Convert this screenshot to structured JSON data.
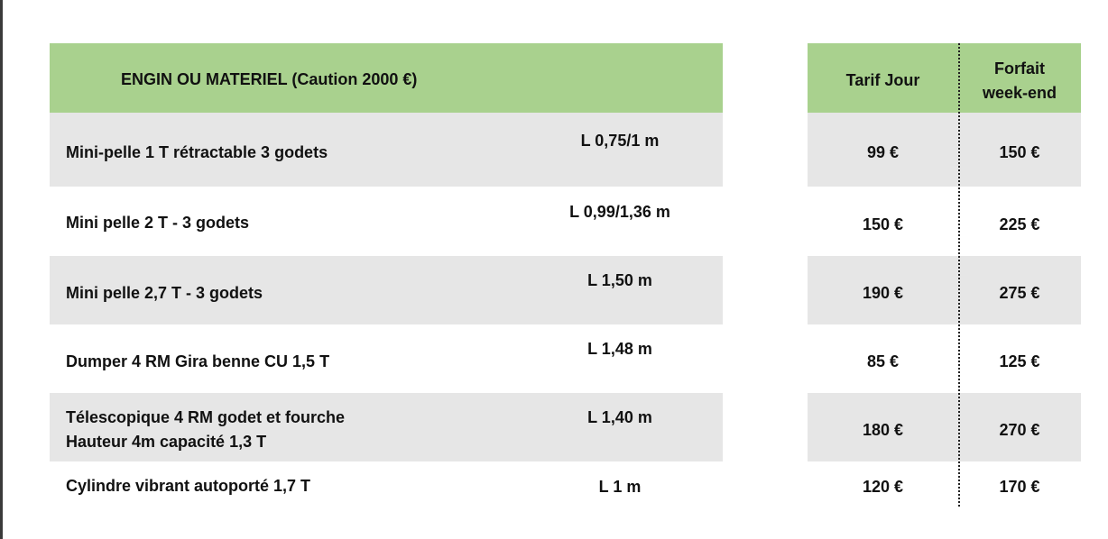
{
  "table": {
    "header": {
      "item": "ENGIN OU MATERIEL (Caution 2000 €)",
      "day_rate": "Tarif Jour",
      "weekend_line1": "Forfait",
      "weekend_line2": "week-end"
    },
    "rows": [
      {
        "name": "Mini-pelle 1 T rétractable 3 godets",
        "size": "L 0,75/1 m",
        "day": "99 €",
        "weekend": "150 €"
      },
      {
        "name": "Mini pelle 2 T -  3 godets",
        "size": "L 0,99/1,36 m",
        "day": "150 €",
        "weekend": "225 €"
      },
      {
        "name": "Mini pelle 2,7 T - 3 godets",
        "size": "L 1,50 m",
        "day": "190 €",
        "weekend": "275 €"
      },
      {
        "name": "Dumper 4 RM Gira benne CU 1,5 T",
        "size": "L 1,48 m",
        "day": "85 €",
        "weekend": "125 €"
      },
      {
        "name": "Télescopique 4 RM godet et fourche",
        "name_line2": "Hauteur 4m capacité 1,3 T",
        "size": "L 1,40 m",
        "day": "180 €",
        "weekend": "270 €"
      },
      {
        "name": "Cylindre vibrant autoporté 1,7 T",
        "size": "L 1 m",
        "day": "120 €",
        "weekend": "170 €"
      }
    ]
  }
}
